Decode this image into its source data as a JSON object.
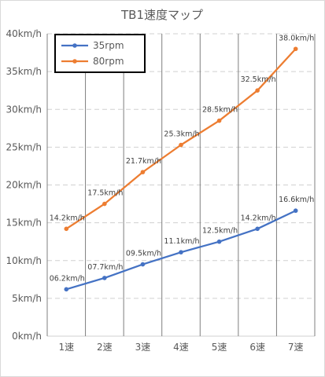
{
  "chart_data": {
    "type": "line",
    "title": "TB1速度マップ",
    "xlabel": "",
    "ylabel": "",
    "categories": [
      "1速",
      "2速",
      "3速",
      "4速",
      "5速",
      "6速",
      "7速"
    ],
    "y_ticks": [
      "0km/h",
      "5km/h",
      "10km/h",
      "15km/h",
      "20km/h",
      "25km/h",
      "30km/h",
      "35km/h",
      "40km/h"
    ],
    "ylim": [
      0,
      40
    ],
    "grid": "vertical solid lines and horizontal dashed lines",
    "legend_position": "top-left",
    "series": [
      {
        "name": "35rpm",
        "color": "#4472c4",
        "values": [
          6.2,
          7.7,
          9.5,
          11.1,
          12.5,
          14.2,
          16.6
        ],
        "labels": [
          "06.2km/h",
          "07.7km/h",
          "09.5km/h",
          "11.1km/h",
          "12.5km/h",
          "14.2km/h",
          "16.6km/h"
        ]
      },
      {
        "name": "80rpm",
        "color": "#ed7d31",
        "values": [
          14.2,
          17.5,
          21.7,
          25.3,
          28.5,
          32.5,
          38.0
        ],
        "labels": [
          "14.2km/h",
          "17.5km/h",
          "21.7km/h",
          "25.3km/h",
          "28.5km/h",
          "32.5km/h",
          "38.0km/h"
        ]
      }
    ]
  }
}
